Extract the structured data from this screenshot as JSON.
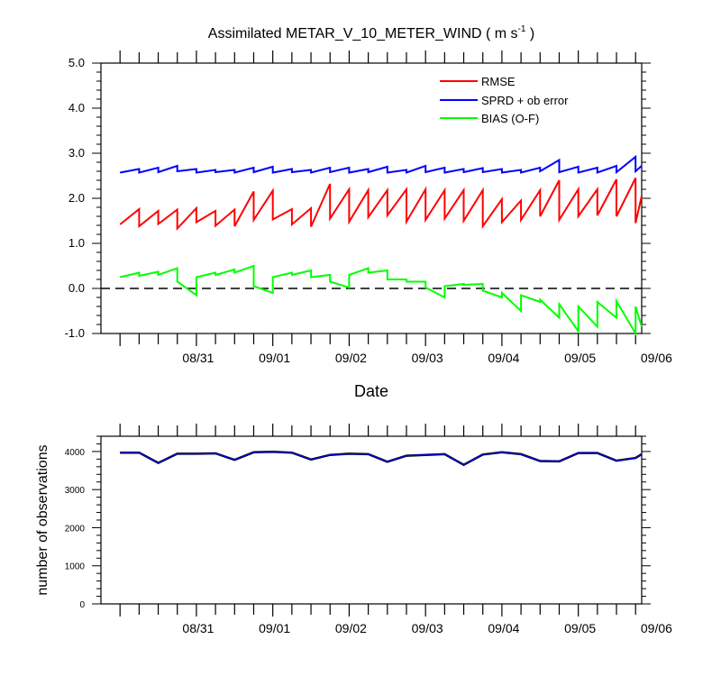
{
  "chart_data": [
    {
      "type": "line",
      "title": "Assimilated METAR_V_10_METER_WIND ( m s",
      "title_superscript": "-1",
      "title_suffix": " )",
      "xlabel": "Date",
      "ylabel": "",
      "ylim": [
        -1.0,
        5.0
      ],
      "yticks": [
        "-1.0",
        "0.0",
        "1.0",
        "2.0",
        "3.0",
        "4.0",
        "5.0"
      ],
      "x_tick_labels": [
        "08/31",
        "09/01",
        "09/02",
        "09/03",
        "09/04",
        "09/05",
        "09/06"
      ],
      "x_tick_days": [
        1,
        2,
        3,
        4,
        5,
        6,
        7
      ],
      "xlim_days": [
        -0.25,
        6.83
      ],
      "legend_position": "top-right",
      "zero_line": true,
      "series": [
        {
          "name": "RMSE",
          "color": "#ff0000",
          "cycles": [
            [
              1.42,
              1.76
            ],
            [
              1.38,
              1.72
            ],
            [
              1.43,
              1.75
            ],
            [
              1.33,
              1.78
            ],
            [
              1.47,
              1.72
            ],
            [
              1.39,
              1.75
            ],
            [
              1.38,
              2.15
            ],
            [
              1.52,
              2.17
            ],
            [
              1.53,
              1.76
            ],
            [
              1.42,
              1.78
            ],
            [
              1.37,
              2.32
            ],
            [
              1.55,
              2.2
            ],
            [
              1.48,
              2.18
            ],
            [
              1.58,
              2.18
            ],
            [
              1.62,
              2.2
            ],
            [
              1.48,
              2.2
            ],
            [
              1.52,
              2.18
            ],
            [
              1.55,
              2.18
            ],
            [
              1.5,
              2.18
            ],
            [
              1.38,
              1.98
            ],
            [
              1.47,
              1.95
            ],
            [
              1.52,
              2.18
            ],
            [
              1.6,
              2.4
            ],
            [
              1.52,
              2.2
            ],
            [
              1.6,
              2.2
            ],
            [
              1.62,
              2.42
            ],
            [
              1.6,
              2.45
            ],
            [
              1.45,
              2.05
            ]
          ]
        },
        {
          "name": "SPRD + ob error",
          "color": "#0000ff",
          "cycles": [
            [
              2.57,
              2.65
            ],
            [
              2.57,
              2.68
            ],
            [
              2.58,
              2.72
            ],
            [
              2.6,
              2.65
            ],
            [
              2.57,
              2.63
            ],
            [
              2.58,
              2.63
            ],
            [
              2.57,
              2.68
            ],
            [
              2.58,
              2.7
            ],
            [
              2.57,
              2.65
            ],
            [
              2.58,
              2.63
            ],
            [
              2.57,
              2.68
            ],
            [
              2.58,
              2.68
            ],
            [
              2.57,
              2.65
            ],
            [
              2.58,
              2.7
            ],
            [
              2.57,
              2.63
            ],
            [
              2.57,
              2.72
            ],
            [
              2.58,
              2.68
            ],
            [
              2.57,
              2.65
            ],
            [
              2.58,
              2.67
            ],
            [
              2.58,
              2.65
            ],
            [
              2.57,
              2.63
            ],
            [
              2.57,
              2.68
            ],
            [
              2.6,
              2.85
            ],
            [
              2.58,
              2.7
            ],
            [
              2.57,
              2.68
            ],
            [
              2.57,
              2.72
            ],
            [
              2.58,
              2.92
            ],
            [
              2.6,
              2.72
            ]
          ]
        },
        {
          "name": "BIAS (O-F)",
          "color": "#00ff00",
          "cycles": [
            [
              0.25,
              0.35
            ],
            [
              0.28,
              0.37
            ],
            [
              0.3,
              0.45
            ],
            [
              0.15,
              -0.15
            ],
            [
              0.25,
              0.35
            ],
            [
              0.3,
              0.42
            ],
            [
              0.35,
              0.5
            ],
            [
              0.05,
              -0.1
            ],
            [
              0.25,
              0.35
            ],
            [
              0.3,
              0.4
            ],
            [
              0.25,
              0.3
            ],
            [
              0.15,
              0.02
            ],
            [
              0.3,
              0.45
            ],
            [
              0.35,
              0.4
            ],
            [
              0.2,
              0.2
            ],
            [
              0.15,
              0.15
            ],
            [
              0.02,
              -0.2
            ],
            [
              0.05,
              0.1
            ],
            [
              0.08,
              0.1
            ],
            [
              -0.05,
              -0.2
            ],
            [
              -0.1,
              -0.5
            ],
            [
              -0.15,
              -0.3
            ],
            [
              -0.25,
              -0.65
            ],
            [
              -0.35,
              -0.95
            ],
            [
              -0.4,
              -0.85
            ],
            [
              -0.3,
              -0.65
            ],
            [
              -0.28,
              -1.0
            ],
            [
              -0.4,
              -0.85
            ]
          ]
        }
      ]
    },
    {
      "type": "line",
      "title": "",
      "xlabel": "",
      "ylabel": "number of observations",
      "ylim": [
        0,
        4400
      ],
      "yticks": [
        "0",
        "1000",
        "2000",
        "3000",
        "4000"
      ],
      "x_tick_labels": [
        "08/31",
        "09/01",
        "09/02",
        "09/03",
        "09/04",
        "09/05",
        "09/06"
      ],
      "x_tick_days": [
        1,
        2,
        3,
        4,
        5,
        6,
        7
      ],
      "xlim_days": [
        -0.25,
        6.83
      ],
      "series": [
        {
          "name": "",
          "color": "#0000ff",
          "values": [
            3970,
            3970,
            3700,
            3940,
            3940,
            3950,
            3780,
            3980,
            3990,
            3970,
            3790,
            3910,
            3940,
            3930,
            3730,
            3890,
            3910,
            3930,
            3650,
            3920,
            3980,
            3930,
            3750,
            3740,
            3960,
            3960,
            3760,
            3830,
            3930
          ]
        }
      ]
    }
  ]
}
